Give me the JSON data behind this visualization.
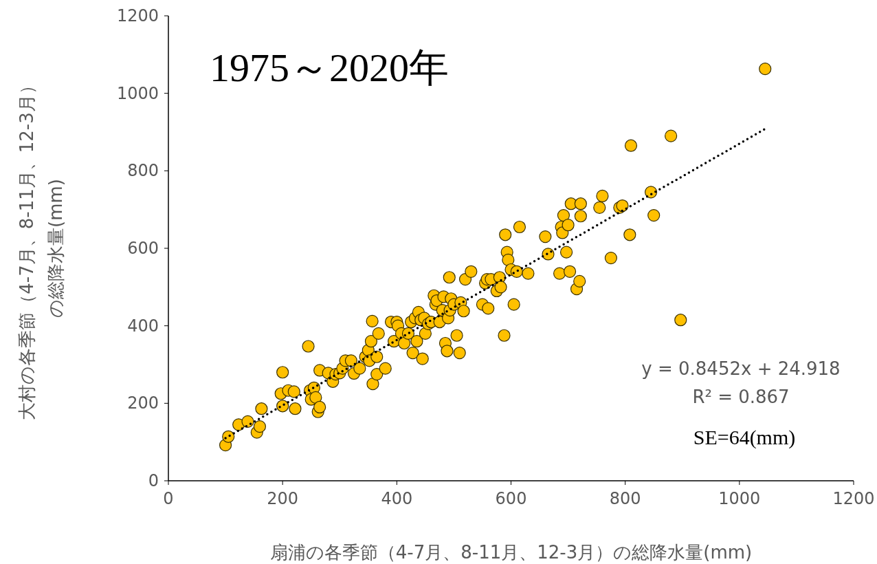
{
  "chart_data": {
    "type": "scatter",
    "title": "1975～2020年",
    "xlabel": "扇浦の各季節（4-7月、8-11月、12-3月）の総降水量(mm)",
    "ylabel": "大村の各季節（4-7月、8-11月、12-3月）の総降水量(mm)",
    "xlim": [
      0,
      1200
    ],
    "xticks": [
      0,
      200,
      400,
      600,
      800,
      1000,
      1200
    ],
    "ylim": [
      0,
      1200
    ],
    "yticks": [
      0,
      200,
      400,
      600,
      800,
      1000,
      1200
    ],
    "grid": false,
    "annotations": [
      "y = 0.8452x + 24.918",
      "R² = 0.867",
      "SE=64(mm)"
    ],
    "series": [
      {
        "color": "#ffc000",
        "marker": "circle",
        "x": [
          100,
          105,
          123,
          139,
          155,
          160,
          163,
          197,
          200,
          200,
          210,
          220,
          222,
          245,
          248,
          250,
          255,
          258,
          262,
          265,
          265,
          280,
          288,
          293,
          300,
          305,
          310,
          320,
          325,
          335,
          345,
          350,
          352,
          355,
          357,
          358,
          365,
          365,
          368,
          380,
          390,
          395,
          400,
          402,
          408,
          413,
          420,
          425,
          428,
          432,
          435,
          438,
          442,
          445,
          448,
          450,
          455,
          460,
          465,
          468,
          470,
          475,
          480,
          482,
          485,
          488,
          490,
          492,
          493,
          495,
          500,
          505,
          510,
          512,
          517,
          520,
          530,
          550,
          555,
          558,
          560,
          565,
          575,
          580,
          582,
          588,
          590,
          593,
          595,
          600,
          605,
          610,
          615,
          630,
          660,
          665,
          685,
          688,
          690,
          692,
          697,
          700,
          703,
          705,
          715,
          720,
          722,
          722,
          755,
          760,
          775,
          790,
          795,
          808,
          810,
          845,
          850,
          880,
          897,
          1045
        ],
        "values": [
          92,
          114,
          145,
          153,
          125,
          140,
          186,
          225,
          280,
          193,
          233,
          230,
          186,
          347,
          233,
          210,
          240,
          215,
          178,
          190,
          285,
          278,
          256,
          275,
          278,
          290,
          310,
          310,
          277,
          290,
          320,
          337,
          310,
          360,
          412,
          250,
          275,
          320,
          380,
          290,
          410,
          360,
          410,
          400,
          380,
          355,
          380,
          410,
          330,
          420,
          360,
          435,
          415,
          315,
          420,
          380,
          405,
          410,
          478,
          455,
          465,
          410,
          440,
          475,
          355,
          335,
          420,
          525,
          440,
          470,
          455,
          375,
          330,
          460,
          438,
          520,
          540,
          455,
          510,
          520,
          445,
          520,
          490,
          525,
          500,
          375,
          635,
          590,
          570,
          545,
          455,
          540,
          655,
          535,
          630,
          585,
          535,
          655,
          640,
          685,
          590,
          660,
          540,
          715,
          495,
          515,
          683,
          715,
          705,
          735,
          575,
          705,
          710,
          635,
          865,
          745,
          685,
          890,
          415,
          1063
        ]
      },
      {
        "type": "line",
        "color": "#000000",
        "line_style": "dotted",
        "marker": "none",
        "x": [
          100,
          1045
        ],
        "values": [
          110,
          908
        ]
      }
    ]
  }
}
